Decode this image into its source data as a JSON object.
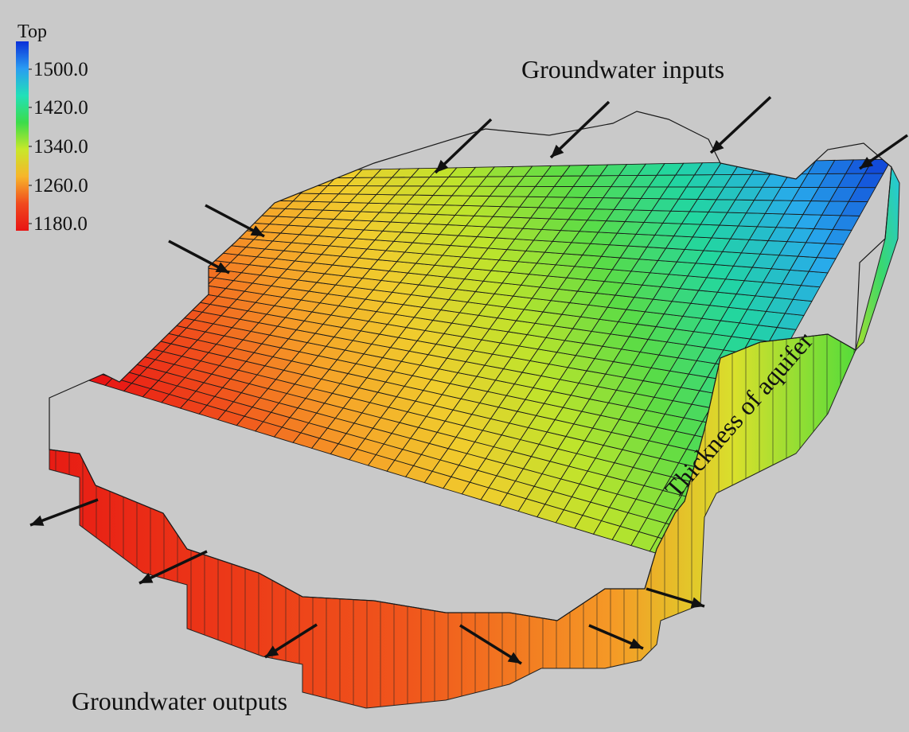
{
  "legend": {
    "title": "Top",
    "ticks": [
      "1500.0",
      "1420.0",
      "1340.0",
      "1260.0",
      "1180.0"
    ],
    "gradient_colors": [
      "#0a2fd8",
      "#2a9cf2",
      "#22e0b8",
      "#3bdc4a",
      "#c8e82a",
      "#f7b52a",
      "#f04a1e",
      "#e81414"
    ]
  },
  "annotations": {
    "inputs": "Groundwater inputs",
    "outputs": "Groundwater outputs",
    "thickness": "Thickness of aquifer"
  },
  "colors": {
    "background": "#c9c9c9",
    "arrow": "#111111",
    "grid_line": "#1a1a1a"
  },
  "value_range": [
    1180,
    1500
  ]
}
